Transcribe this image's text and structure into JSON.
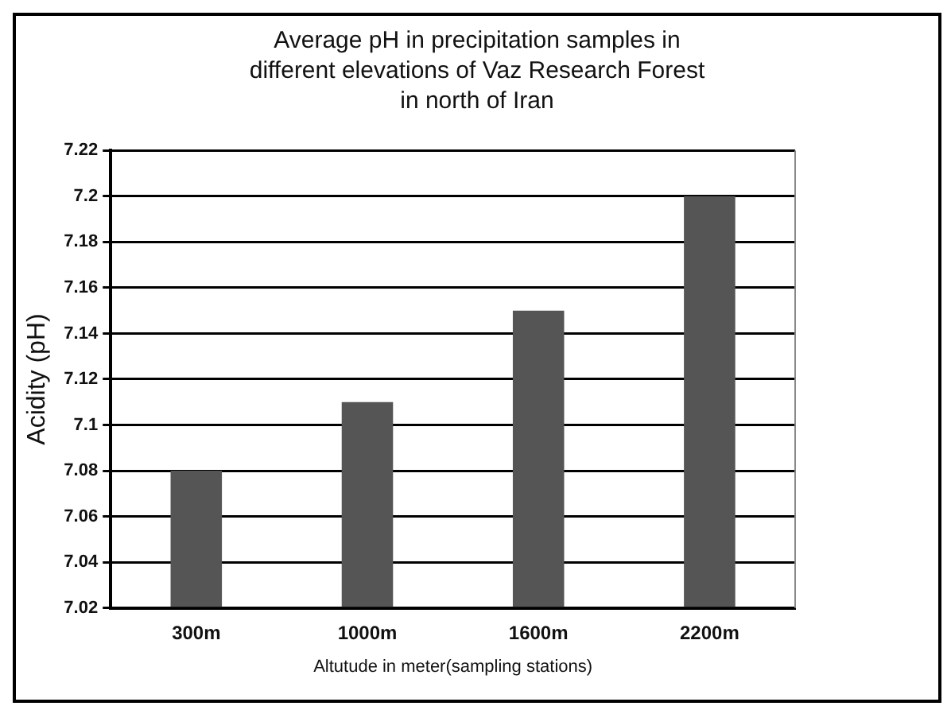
{
  "chart_data": {
    "type": "bar",
    "title": "Average pH in precipitation samples in different elevations of Vaz Research Forest in north of Iran",
    "xlabel": "Altutude in meter(sampling stations)",
    "ylabel": "Acidity (pH)",
    "categories": [
      "300m",
      "1000m",
      "1600m",
      "2200m"
    ],
    "values": [
      7.08,
      7.11,
      7.15,
      7.2
    ],
    "color": "#555555",
    "ylim": [
      7.02,
      7.22
    ],
    "yticks": [
      7.02,
      7.04,
      7.06,
      7.08,
      7.1,
      7.12,
      7.14,
      7.16,
      7.18,
      7.2,
      7.22
    ],
    "grid": "y"
  }
}
